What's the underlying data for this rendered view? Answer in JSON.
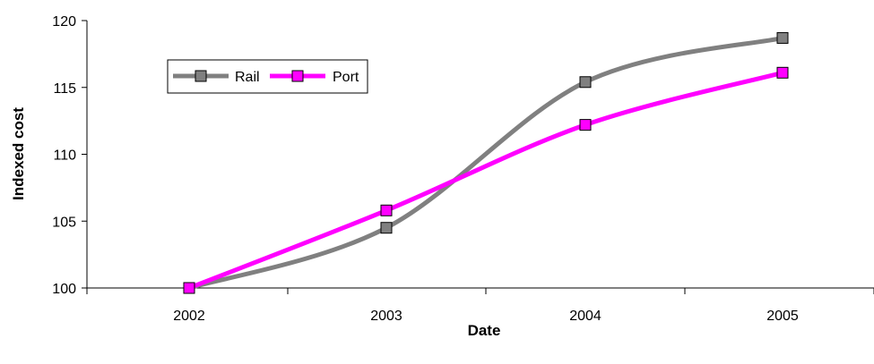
{
  "chart_data": {
    "type": "line",
    "title": "",
    "xlabel": "Date",
    "ylabel": "Indexed cost",
    "categories": [
      "2002",
      "2003",
      "2004",
      "2005"
    ],
    "ylim": [
      100,
      120
    ],
    "yticks": [
      "100",
      "105",
      "110",
      "115",
      "120"
    ],
    "grid": false,
    "legend_position": "top-left",
    "series": [
      {
        "name": "Rail",
        "values": [
          100,
          104.5,
          115.4,
          118.7
        ],
        "color": "#808080"
      },
      {
        "name": "Port",
        "values": [
          100,
          105.8,
          112.2,
          116.1
        ],
        "color": "#ff00ff"
      }
    ]
  }
}
